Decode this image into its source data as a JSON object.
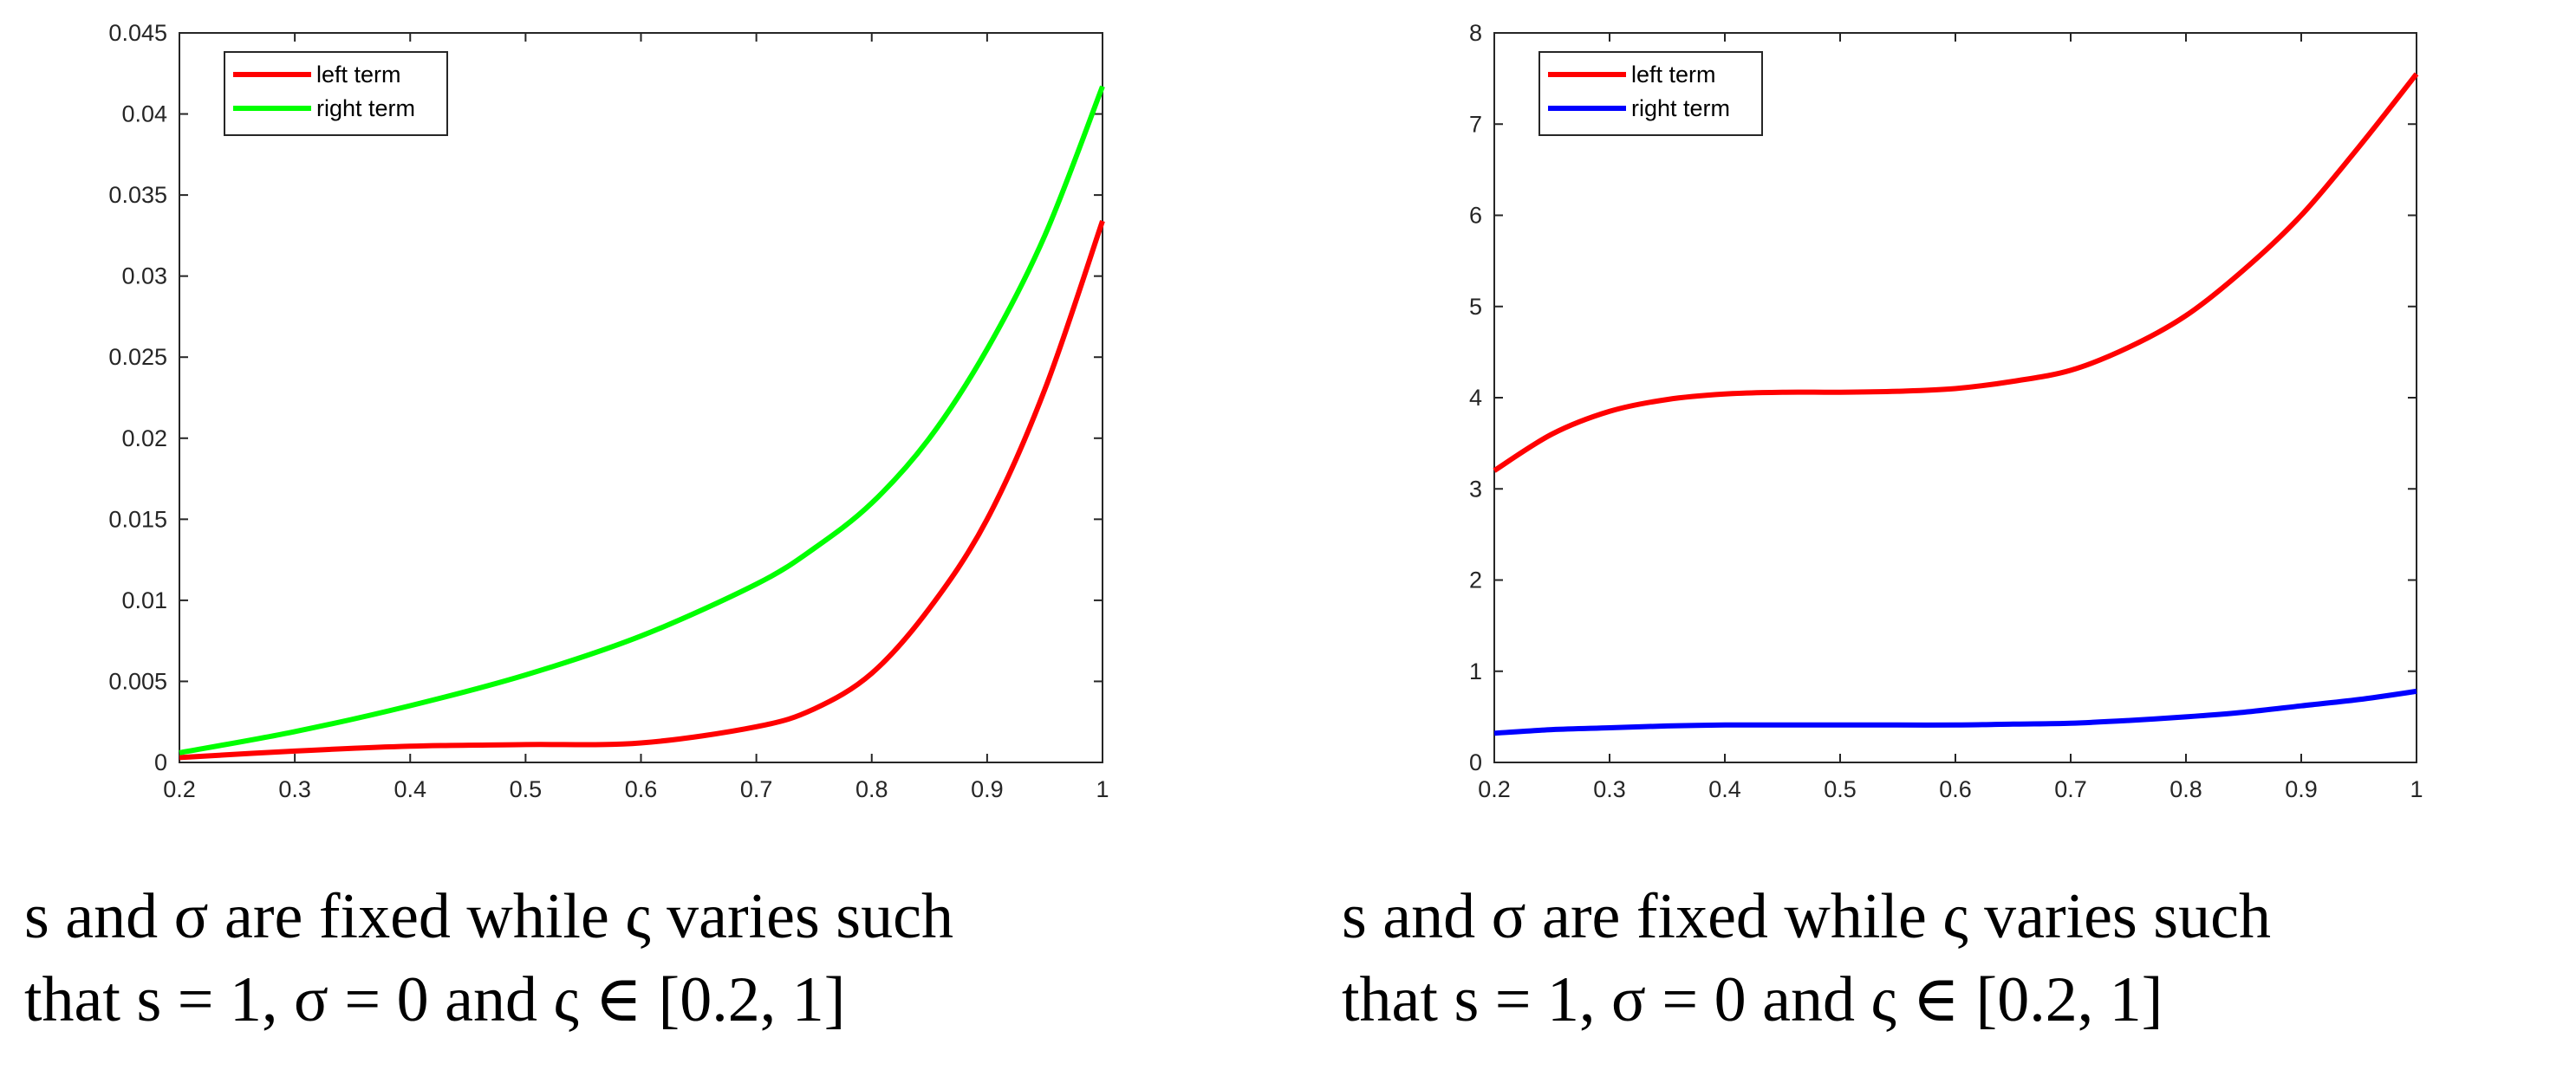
{
  "chart_data": [
    {
      "type": "line",
      "title": "",
      "xlabel": "",
      "ylabel": "",
      "xlim": [
        0.2,
        1
      ],
      "ylim": [
        0,
        0.045
      ],
      "grid": false,
      "legend_position": "top-left",
      "xticks": [
        "0.2",
        "0.3",
        "0.4",
        "0.5",
        "0.6",
        "0.7",
        "0.8",
        "0.9",
        "1"
      ],
      "yticks": [
        "0",
        "0.005",
        "0.01",
        "0.015",
        "0.02",
        "0.025",
        "0.03",
        "0.035",
        "0.04",
        "0.045"
      ],
      "x": [
        0.2,
        0.3,
        0.4,
        0.5,
        0.6,
        0.7,
        0.75,
        0.8,
        0.85,
        0.9,
        0.95,
        1.0
      ],
      "series": [
        {
          "name": "left term",
          "color": "#ff0000",
          "values": [
            0.0003,
            0.0007,
            0.001,
            0.0011,
            0.0012,
            0.0022,
            0.0033,
            0.0055,
            0.0095,
            0.015,
            0.023,
            0.0334
          ]
        },
        {
          "name": "right term",
          "color": "#00ff00",
          "values": [
            0.0006,
            0.0019,
            0.0035,
            0.0054,
            0.0078,
            0.011,
            0.0132,
            0.016,
            0.02,
            0.0255,
            0.0325,
            0.0417
          ]
        }
      ]
    },
    {
      "type": "line",
      "title": "",
      "xlabel": "",
      "ylabel": "",
      "xlim": [
        0.2,
        1
      ],
      "ylim": [
        0,
        8
      ],
      "grid": false,
      "legend_position": "top-left",
      "xticks": [
        "0.2",
        "0.3",
        "0.4",
        "0.5",
        "0.6",
        "0.7",
        "0.8",
        "0.9",
        "1"
      ],
      "yticks": [
        "0",
        "1",
        "2",
        "3",
        "4",
        "5",
        "6",
        "7",
        "8"
      ],
      "x": [
        0.2,
        0.25,
        0.3,
        0.35,
        0.4,
        0.45,
        0.5,
        0.55,
        0.6,
        0.65,
        0.7,
        0.75,
        0.8,
        0.85,
        0.9,
        0.95,
        1.0
      ],
      "series": [
        {
          "name": "left term",
          "color": "#ff0000",
          "values": [
            3.2,
            3.6,
            3.85,
            3.98,
            4.04,
            4.06,
            4.06,
            4.07,
            4.1,
            4.18,
            4.3,
            4.55,
            4.9,
            5.4,
            6.0,
            6.75,
            7.55
          ]
        },
        {
          "name": "right term",
          "color": "#0000ff",
          "values": [
            0.32,
            0.36,
            0.38,
            0.4,
            0.41,
            0.41,
            0.41,
            0.41,
            0.41,
            0.42,
            0.43,
            0.46,
            0.5,
            0.55,
            0.62,
            0.69,
            0.78
          ]
        }
      ]
    }
  ],
  "captions": [
    {
      "line1": "s and σ are fixed while ς varies such",
      "line2": "that s = 1, σ = 0 and ς ∈ [0.2, 1]"
    },
    {
      "line1": "s and σ are fixed while ς varies such",
      "line2": "that s = 1, σ = 0 and ς ∈ [0.2, 1]"
    }
  ]
}
